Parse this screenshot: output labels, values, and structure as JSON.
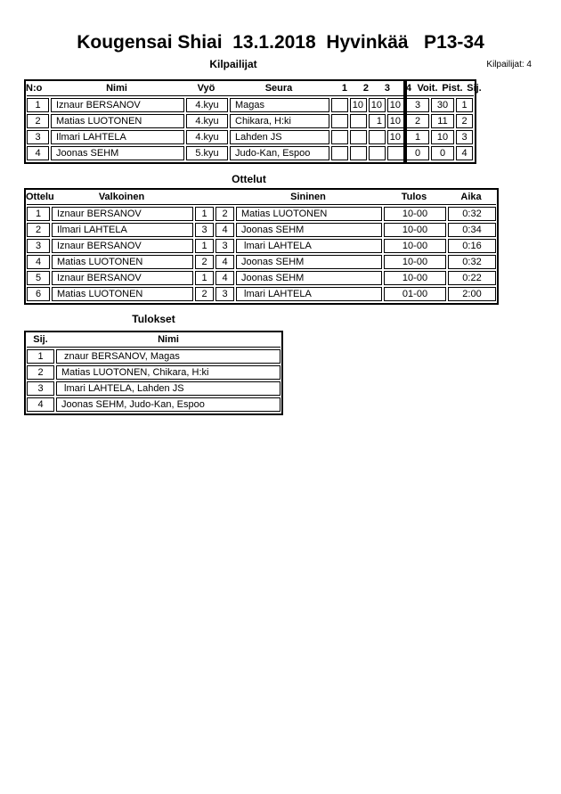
{
  "page": {
    "title": "Kougensai Shiai  13.1.2018  Hyvinkää   P13-34",
    "competitor_count_label": "Kilpailijat: 4"
  },
  "kilpailijat": {
    "section_title": "Kilpailijat",
    "headers": {
      "no": "N:o",
      "nimi": "Nimi",
      "vyo": "Vyö",
      "seura": "Seura",
      "r1": "1",
      "r2": "2",
      "r3": "3",
      "r4": "4",
      "voit": "Voit.",
      "pist": "Pist.",
      "sij": "Sij."
    },
    "rows": [
      {
        "no": "1",
        "nimi": "Iznaur BERSANOV",
        "vyo": "4.kyu",
        "seura": "Magas",
        "scores": [
          "",
          "10",
          "10",
          "10"
        ],
        "voit": "3",
        "pist": "30",
        "sij": "1"
      },
      {
        "no": "2",
        "nimi": "Matias LUOTONEN",
        "vyo": "4.kyu",
        "seura": "Chikara, H:ki",
        "scores": [
          "",
          "",
          "1",
          "10"
        ],
        "voit": "2",
        "pist": "11",
        "sij": "2"
      },
      {
        "no": "3",
        "nimi": "Ilmari LAHTELA",
        "vyo": "4.kyu",
        "seura": "Lahden JS",
        "scores": [
          "",
          "",
          "",
          "10"
        ],
        "voit": "1",
        "pist": "10",
        "sij": "3"
      },
      {
        "no": "4",
        "nimi": "Joonas SEHM",
        "vyo": "5.kyu",
        "seura": "Judo-Kan, Espoo",
        "scores": [
          "",
          "",
          "",
          ""
        ],
        "voit": "0",
        "pist": "0",
        "sij": "4"
      }
    ]
  },
  "ottelut": {
    "section_title": "Ottelut",
    "headers": {
      "ottelu": "Ottelu",
      "valkoinen": "Valkoinen",
      "sininen": "Sininen",
      "tulos": "Tulos",
      "aika": "Aika"
    },
    "rows": [
      {
        "no": "1",
        "valkoinen": "Iznaur BERSANOV",
        "wnum": "1",
        "bnum": "2",
        "sininen": "Matias LUOTONEN",
        "tulos": "10-00",
        "aika": "0:32"
      },
      {
        "no": "2",
        "valkoinen": "Ilmari LAHTELA",
        "wnum": "3",
        "bnum": "4",
        "sininen": "Joonas SEHM",
        "tulos": "10-00",
        "aika": "0:34"
      },
      {
        "no": "3",
        "valkoinen": "Iznaur BERSANOV",
        "wnum": "1",
        "bnum": "3",
        "sininen": " lmari LAHTELA",
        "tulos": "10-00",
        "aika": "0:16"
      },
      {
        "no": "4",
        "valkoinen": "Matias LUOTONEN",
        "wnum": "2",
        "bnum": "4",
        "sininen": "Joonas SEHM",
        "tulos": "10-00",
        "aika": "0:32"
      },
      {
        "no": "5",
        "valkoinen": "Iznaur BERSANOV",
        "wnum": "1",
        "bnum": "4",
        "sininen": "Joonas SEHM",
        "tulos": "10-00",
        "aika": "0:22"
      },
      {
        "no": "6",
        "valkoinen": "Matias LUOTONEN",
        "wnum": "2",
        "bnum": "3",
        "sininen": " lmari LAHTELA",
        "tulos": "01-00",
        "aika": "2:00"
      }
    ]
  },
  "tulokset": {
    "section_title": "Tulokset",
    "headers": {
      "sij": "Sij.",
      "nimi": "Nimi"
    },
    "rows": [
      {
        "sij": "1",
        "nimi": " znaur BERSANOV, Magas"
      },
      {
        "sij": "2",
        "nimi": "Matias LUOTONEN, Chikara, H:ki"
      },
      {
        "sij": "3",
        "nimi": " lmari LAHTELA, Lahden JS"
      },
      {
        "sij": "4",
        "nimi": "Joonas SEHM, Judo-Kan, Espoo"
      }
    ]
  }
}
